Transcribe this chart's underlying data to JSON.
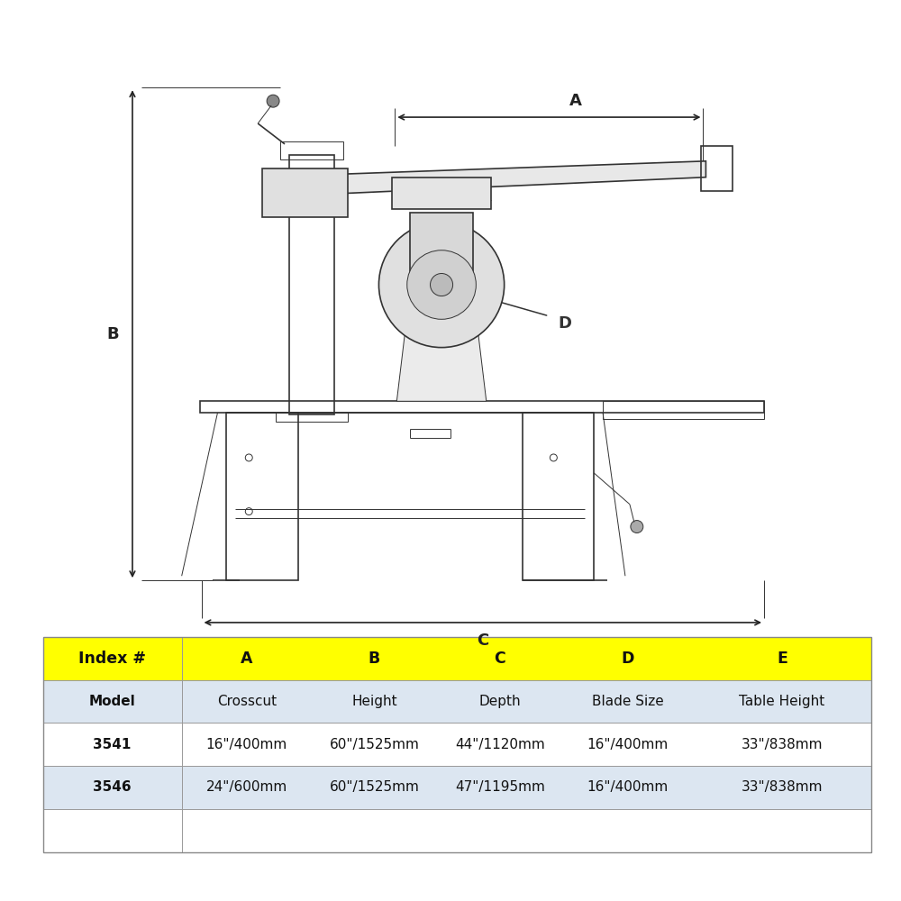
{
  "bg_color": "#ffffff",
  "line_color": "#333333",
  "table_header_bg": "#ffff00",
  "table_row1_bg": "#dce6f1",
  "table_row2_bg": "#ffffff",
  "table_row3_bg": "#dce6f1",
  "table_header": [
    "Index #",
    "A",
    "B",
    "C",
    "D",
    "E"
  ],
  "table_row0": [
    "Model",
    "Crosscut",
    "Height",
    "Depth",
    "Blade Size",
    "Table Height"
  ],
  "table_row1": [
    "3541",
    "16\"/400mm",
    "60\"/1525mm",
    "44\"/1120mm",
    "16\"/400mm",
    "33\"/838mm"
  ],
  "table_row2": [
    "3546",
    "24\"/600mm",
    "60\"/1525mm",
    "47\"/1195mm",
    "16\"/400mm",
    "33\"/838mm"
  ],
  "dim_A_label": "A",
  "dim_B_label": "B",
  "dim_C_label": "C",
  "dim_D_label": "D",
  "title_fontsize": 13,
  "table_fontsize": 11
}
